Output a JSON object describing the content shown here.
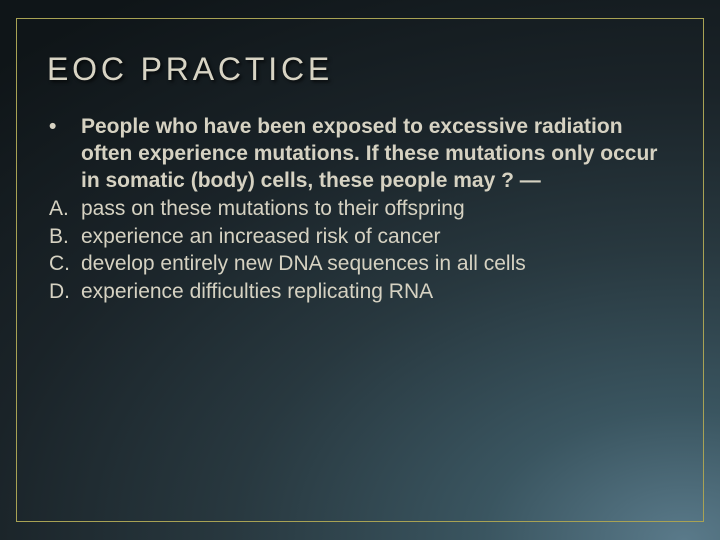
{
  "slide": {
    "title": "EOC PRACTICE",
    "title_color": "#d8d4c4",
    "title_fontsize": 32,
    "body_color": "#d6d2c2",
    "body_fontsize": 21,
    "border_color": "#a8a254",
    "question_marker": "•",
    "question_text": "People who have been exposed to excessive radiation often experience mutations. If these mutations only occur in somatic (body) cells, these people may ? —",
    "options": [
      {
        "marker": "A.",
        "text": "pass on these mutations to their offspring"
      },
      {
        "marker": "B.",
        "text": "experience an increased risk of cancer"
      },
      {
        "marker": "C.",
        "text": "develop entirely new DNA sequences in all cells"
      },
      {
        "marker": "D.",
        "text": "experience difficulties replicating RNA"
      }
    ]
  }
}
